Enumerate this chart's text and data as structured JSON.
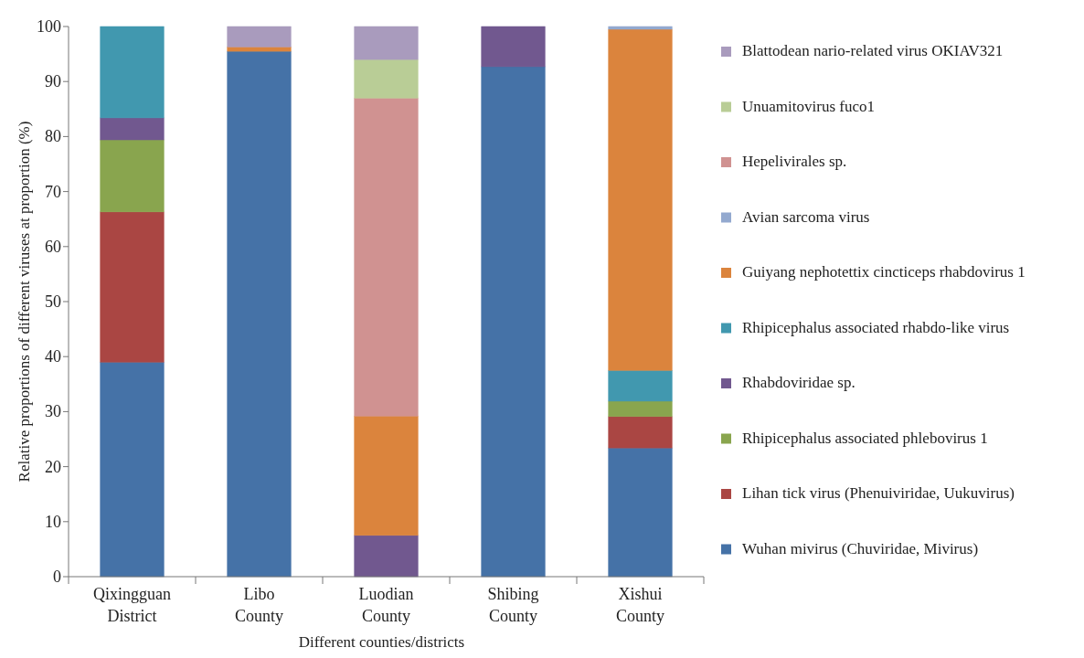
{
  "chart_data": {
    "type": "bar",
    "stacked": true,
    "xlabel": "Different counties/districts",
    "ylabel": "Relative proportions of different viruses at proportion (%)",
    "categories": [
      "Qixingguan District",
      "Libo County",
      "Luodian County",
      "Shibing County",
      "Xishui County"
    ],
    "ylim": [
      0,
      100
    ],
    "yticks": [
      0,
      10,
      20,
      30,
      40,
      50,
      60,
      70,
      80,
      90,
      100
    ],
    "grid": false,
    "legend": "right",
    "series": [
      {
        "name": "Wuhan mivirus (Chuviridae, Mivirus)",
        "color": "#4572a7",
        "values": [
          39.0,
          95.5,
          null,
          92.7,
          23.4
        ]
      },
      {
        "name": "Lihan tick virus (Phenuiviridae, Uukuvirus)",
        "color": "#aa4643",
        "values": [
          27.3,
          null,
          null,
          null,
          5.7
        ]
      },
      {
        "name": "Rhipicephalus associated phlebovirus 1",
        "color": "#89a54e",
        "values": [
          13.1,
          null,
          null,
          null,
          2.8
        ]
      },
      {
        "name": "Rhabdoviridae sp.",
        "color": "#71588f",
        "values": [
          4.0,
          null,
          7.5,
          7.3,
          null
        ]
      },
      {
        "name": "Rhipicephalus associated rhabdo-like virus",
        "color": "#4198af",
        "values": [
          16.6,
          null,
          null,
          null,
          5.6
        ]
      },
      {
        "name": "Guiyang nephotettix cincticeps rhabdovirus 1",
        "color": "#db843d",
        "values": [
          null,
          0.8,
          21.7,
          null,
          62.0
        ]
      },
      {
        "name": "Avian sarcoma virus",
        "color": "#93a9cf",
        "values": [
          null,
          null,
          null,
          null,
          0.5
        ]
      },
      {
        "name": "Hepelivirales sp.",
        "color": "#d09291",
        "values": [
          null,
          null,
          57.8,
          null,
          null
        ]
      },
      {
        "name": "Unuamitovirus fuco1",
        "color": "#b9cd96",
        "values": [
          null,
          null,
          7.0,
          null,
          null
        ]
      },
      {
        "name": "Blattodean nario-related virus OKIAV321",
        "color": "#a99bbd",
        "values": [
          null,
          3.7,
          6.0,
          null,
          null
        ]
      }
    ]
  }
}
